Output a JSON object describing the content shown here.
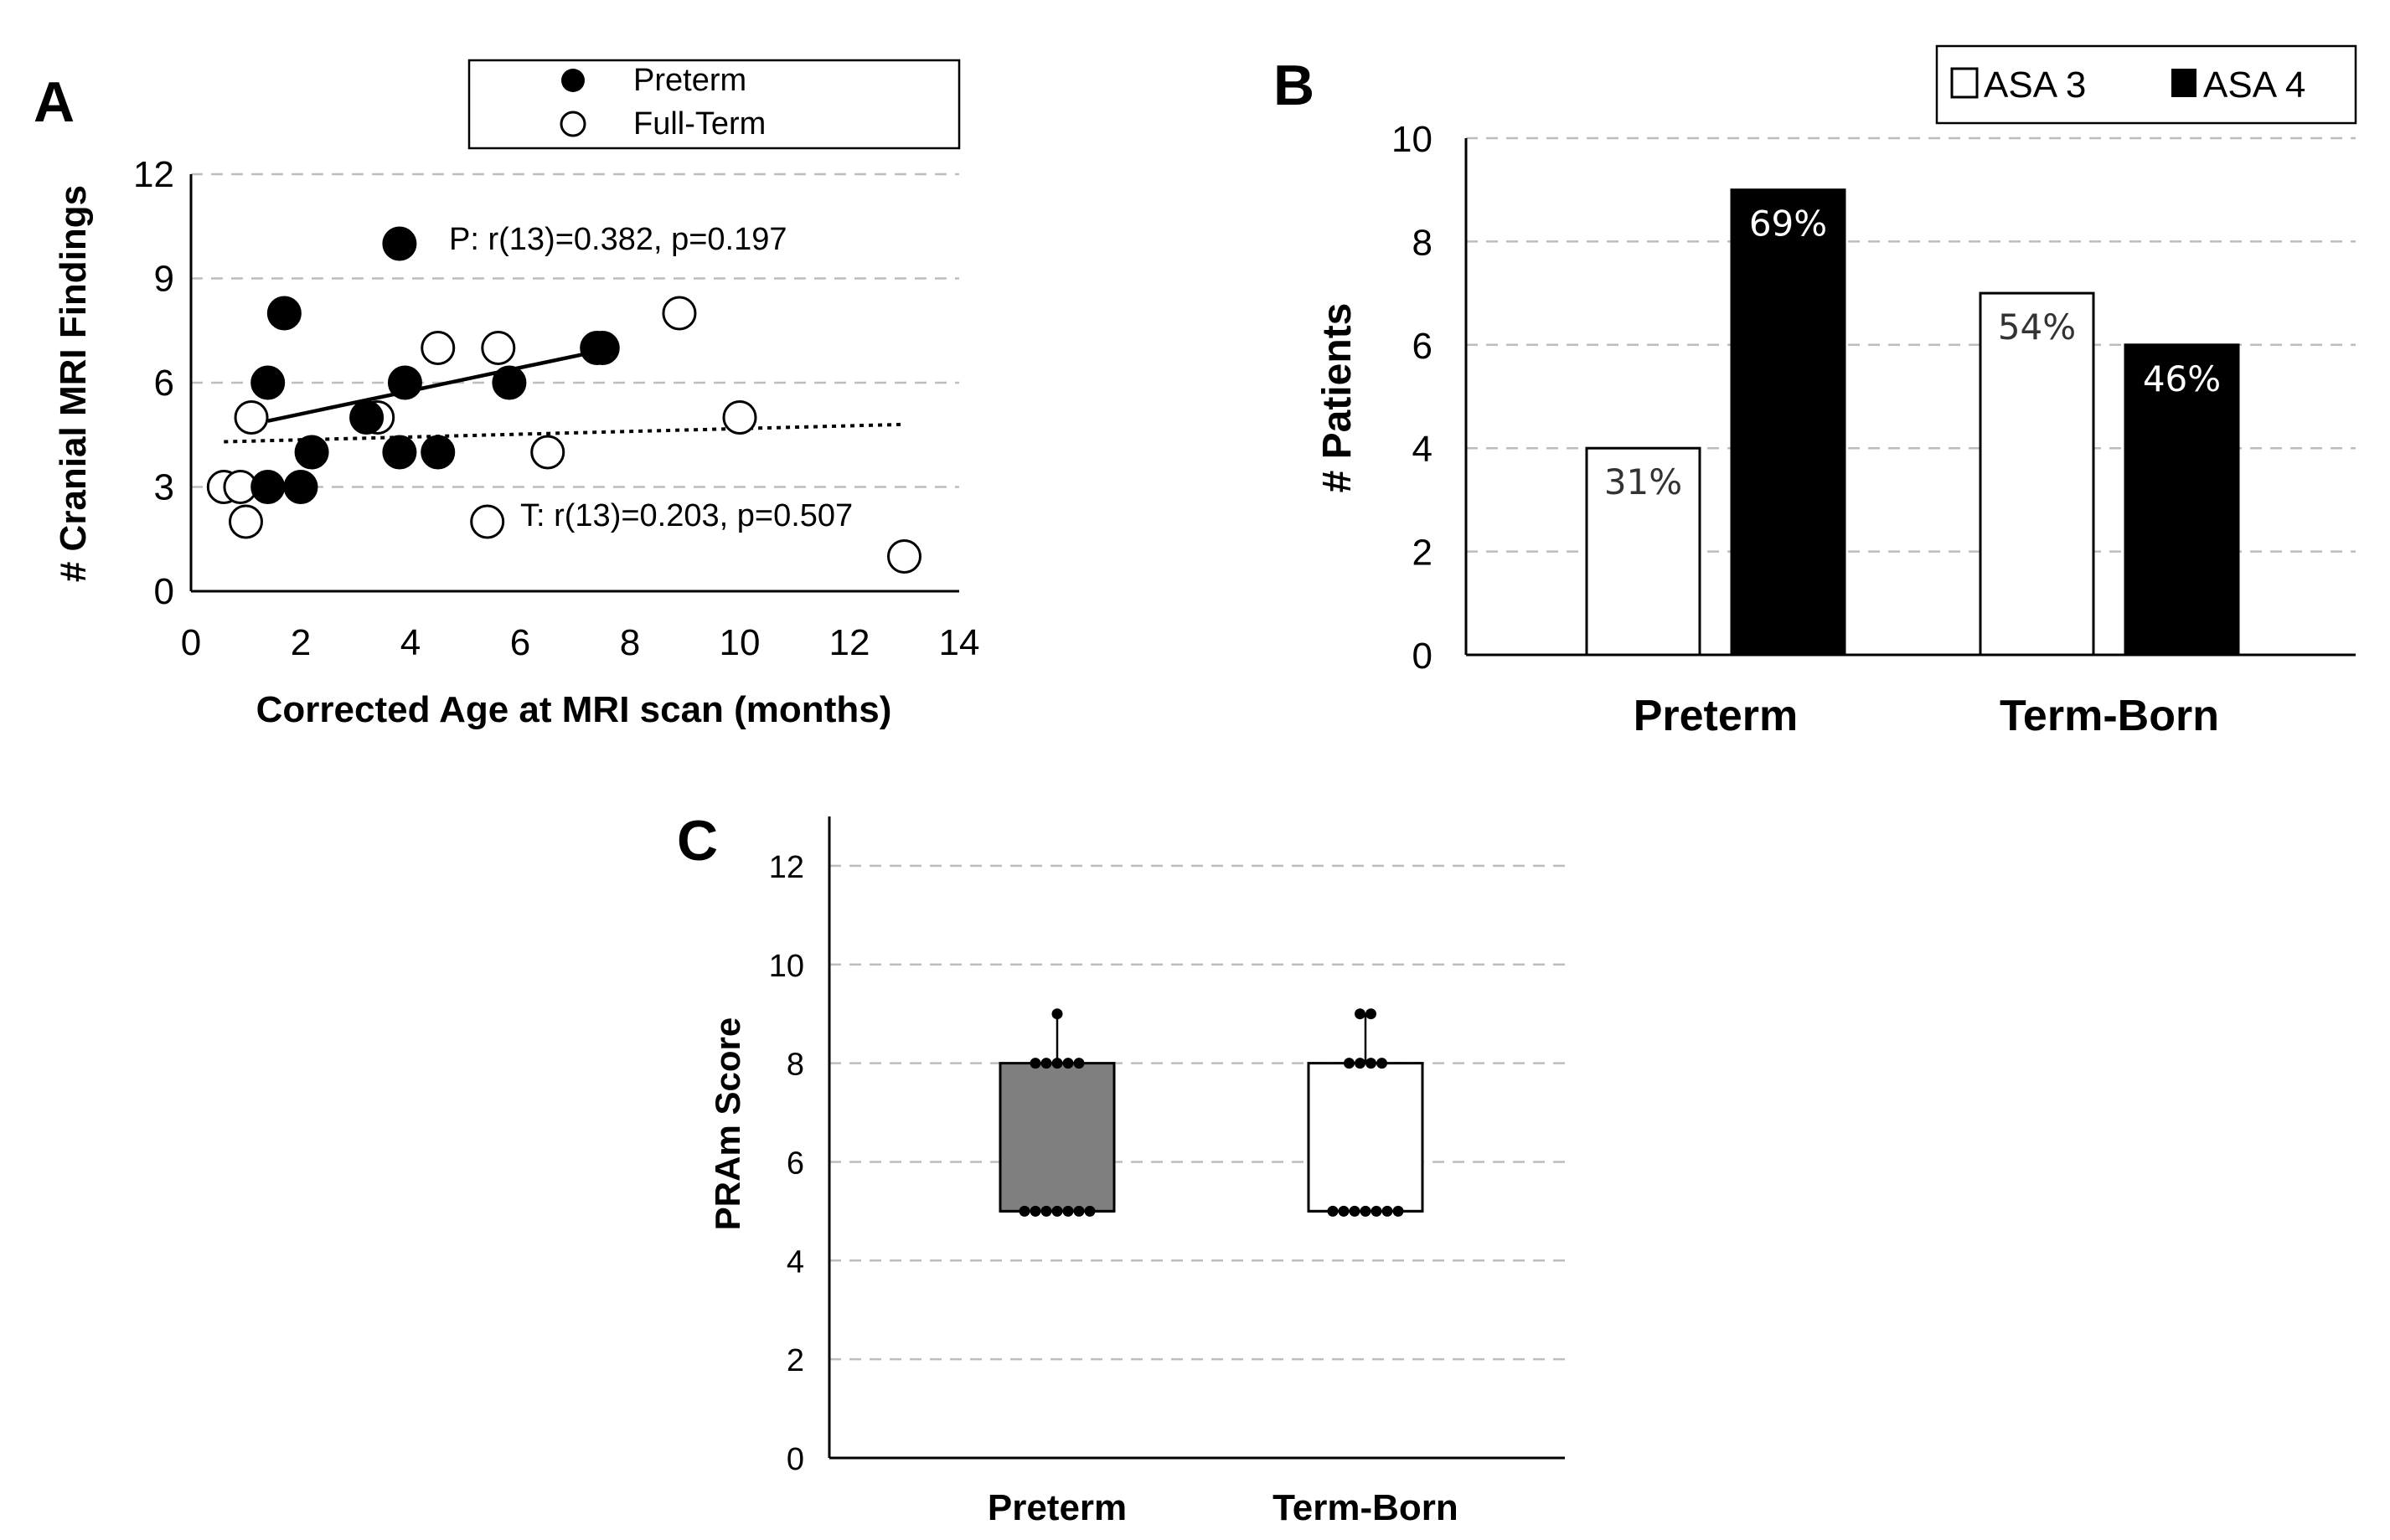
{
  "chart_data": [
    {
      "panel": "A",
      "type": "scatter",
      "title": "",
      "xlabel": "Corrected Age at MRI scan (months)",
      "ylabel": "# Cranial MRI Findings",
      "xlim": [
        0,
        14
      ],
      "ylim": [
        0,
        12
      ],
      "xticks": [
        "0",
        "2",
        "4",
        "6",
        "8",
        "10",
        "12",
        "14"
      ],
      "yticks": [
        "0",
        "3",
        "6",
        "9",
        "12"
      ],
      "legend": [
        "Preterm",
        "Full-Term"
      ],
      "grid": true,
      "series": [
        {
          "name": "Preterm",
          "marker": "filled",
          "points": [
            [
              1.4,
              3
            ],
            [
              1.4,
              6
            ],
            [
              1.7,
              8
            ],
            [
              2.0,
              3
            ],
            [
              2.2,
              4
            ],
            [
              3.2,
              5
            ],
            [
              3.8,
              4
            ],
            [
              3.8,
              10
            ],
            [
              3.9,
              6
            ],
            [
              4.5,
              4
            ],
            [
              5.8,
              6
            ],
            [
              7.4,
              7
            ],
            [
              7.5,
              7
            ]
          ],
          "trend": {
            "x0": 1.4,
            "y0": 4.9,
            "x1": 7.4,
            "y1": 6.9,
            "style": "solid"
          },
          "annotation": "P: r(13)=0.382, p=0.197"
        },
        {
          "name": "Full-Term",
          "marker": "open",
          "points": [
            [
              0.6,
              3
            ],
            [
              0.9,
              3
            ],
            [
              1.0,
              2
            ],
            [
              1.1,
              5
            ],
            [
              3.4,
              5
            ],
            [
              4.5,
              7
            ],
            [
              5.4,
              2
            ],
            [
              5.6,
              7
            ],
            [
              6.5,
              4
            ],
            [
              8.9,
              8
            ],
            [
              10.0,
              5
            ],
            [
              13.0,
              1
            ]
          ],
          "trend": {
            "x0": 0.6,
            "y0": 4.3,
            "x1": 13.0,
            "y1": 4.8,
            "style": "dotted"
          },
          "annotation": "T: r(13)=0.203, p=0.507"
        }
      ]
    },
    {
      "panel": "B",
      "type": "bar",
      "title": "",
      "xlabel": "",
      "ylabel": "# Patients",
      "categories": [
        "Preterm",
        "Term-Born"
      ],
      "ylim": [
        0,
        10
      ],
      "yticks": [
        "0",
        "2",
        "4",
        "6",
        "8",
        "10"
      ],
      "legend": [
        "ASA 3",
        "ASA 4"
      ],
      "grid": true,
      "series": [
        {
          "name": "ASA 3",
          "color": "#ffffff",
          "values": [
            4,
            7
          ],
          "labels": [
            "31%",
            "54%"
          ]
        },
        {
          "name": "ASA 4",
          "color": "#000000",
          "values": [
            9,
            6
          ],
          "labels": [
            "69%",
            "46%"
          ]
        }
      ]
    },
    {
      "panel": "C",
      "type": "box",
      "title": "",
      "xlabel": "",
      "ylabel": "PRAm Score",
      "categories": [
        "Preterm",
        "Term-Born"
      ],
      "ylim": [
        0,
        13
      ],
      "yticks": [
        "0",
        "2",
        "4",
        "6",
        "8",
        "10",
        "12"
      ],
      "grid": true,
      "boxes": [
        {
          "name": "Preterm",
          "q1": 5,
          "q3": 8,
          "median": 5,
          "whisker_high": 9,
          "fill": "#7f7f7f",
          "points": [
            5,
            5,
            5,
            5,
            5,
            5,
            5,
            8,
            8,
            8,
            8,
            8,
            9
          ]
        },
        {
          "name": "Term-Born",
          "q1": 5,
          "q3": 8,
          "median": 5,
          "whisker_high": 9,
          "fill": "#ffffff",
          "points": [
            5,
            5,
            5,
            5,
            5,
            5,
            5,
            8,
            8,
            8,
            8,
            9,
            9
          ]
        }
      ]
    }
  ]
}
